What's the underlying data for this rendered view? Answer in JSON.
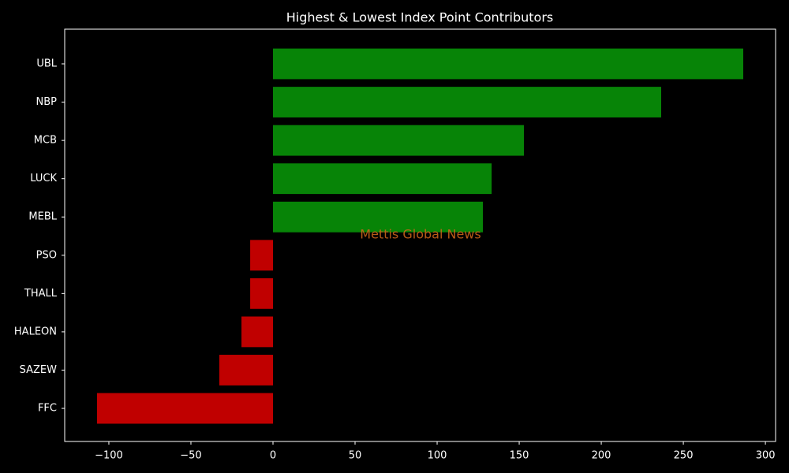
{
  "chart_data": {
    "type": "barh",
    "title": "Highest & Lowest Index Point Contributors",
    "watermark": "Mettis Global News",
    "categories": [
      "UBL",
      "NBP",
      "MCB",
      "LUCK",
      "MEBL",
      "PSO",
      "THALL",
      "HALEON",
      "SAZEW",
      "FFC"
    ],
    "values": [
      286.5,
      236.5,
      152.9,
      133.2,
      127.9,
      -13.9,
      -13.9,
      -19.2,
      -32.7,
      -107.2
    ],
    "colors": [
      "#078407",
      "#078407",
      "#078407",
      "#078407",
      "#078407",
      "#c00000",
      "#c00000",
      "#c00000",
      "#c00000",
      "#c00000"
    ],
    "xlim": [
      -126.9,
      306.2
    ],
    "xticks": [
      {
        "value": -100,
        "label": "−100"
      },
      {
        "value": -50,
        "label": "−50"
      },
      0,
      50,
      100,
      150,
      200,
      250,
      300
    ],
    "grid": false
  }
}
